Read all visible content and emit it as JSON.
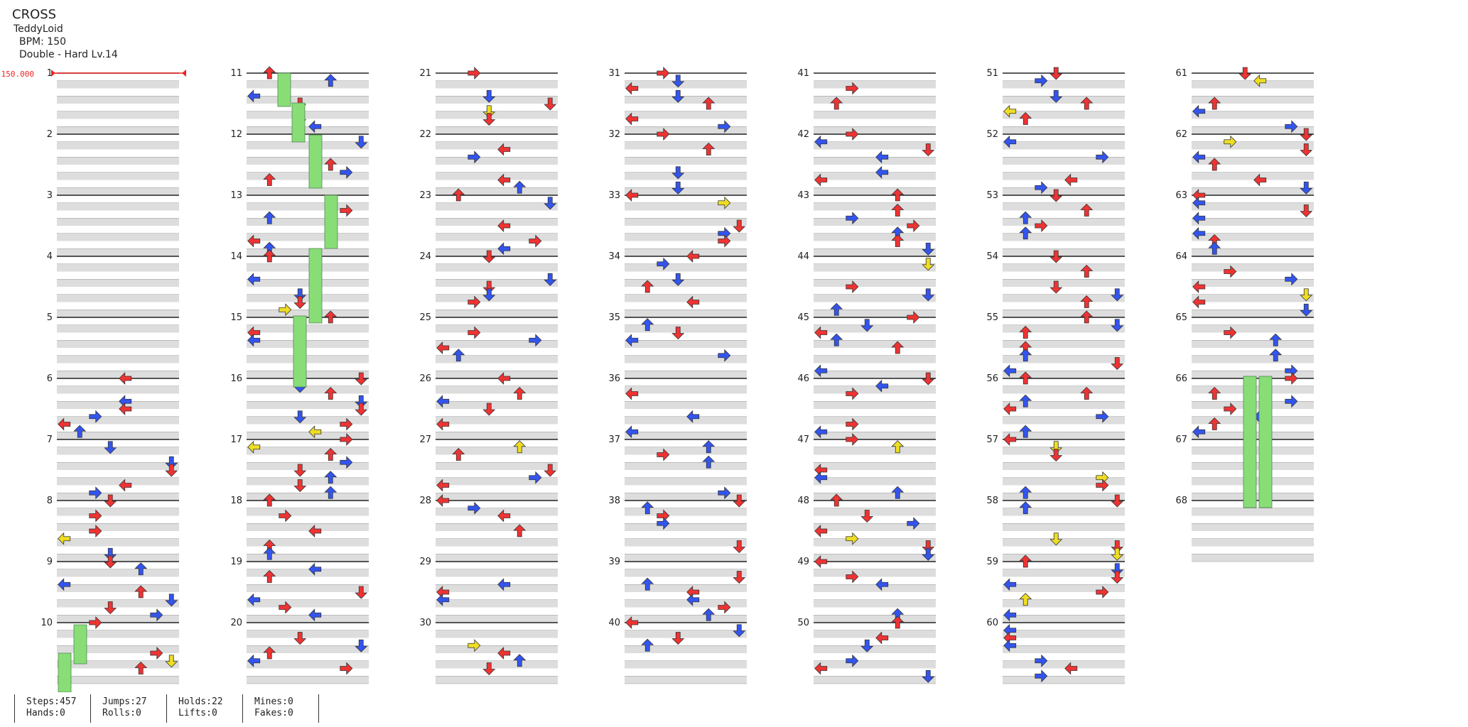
{
  "song": {
    "title": "CROSS",
    "artist": "TeddyLoid",
    "bpm_text": "BPM: 150",
    "difficulty_text": "Double - Hard Lv.14"
  },
  "bpm_marker": "150.000",
  "measures": [
    "1",
    "2",
    "3",
    "4",
    "5",
    "6",
    "7",
    "8",
    "9",
    "10",
    "11",
    "12",
    "13",
    "14",
    "15",
    "16",
    "17",
    "18",
    "19",
    "20",
    "21",
    "22",
    "23",
    "24",
    "25",
    "26",
    "27",
    "28",
    "29",
    "30",
    "31",
    "32",
    "33",
    "34",
    "35",
    "36",
    "37",
    "38",
    "39",
    "40",
    "41",
    "42",
    "43",
    "44",
    "45",
    "46",
    "47",
    "48",
    "49",
    "50",
    "51",
    "52",
    "53",
    "54",
    "55",
    "56",
    "57",
    "58",
    "59",
    "60",
    "61",
    "62",
    "63",
    "64",
    "65",
    "66",
    "67",
    "68"
  ],
  "colors": {
    "quarter": "#ee3333",
    "eighth": "#3355ee",
    "sixteenth": "#eedd22",
    "hold": "#88dd77",
    "row_band": "#dddddd",
    "measure_line": "#222222",
    "bpm": "#ee2222"
  },
  "stats": {
    "steps": "Steps:457",
    "hands": "Hands:0",
    "jumps": "Jumps:27",
    "rolls": "Rolls:0",
    "holds": "Holds:22",
    "lifts": "Lifts:0",
    "mines": "Mines:0",
    "fakes": "Fakes:0"
  }
}
